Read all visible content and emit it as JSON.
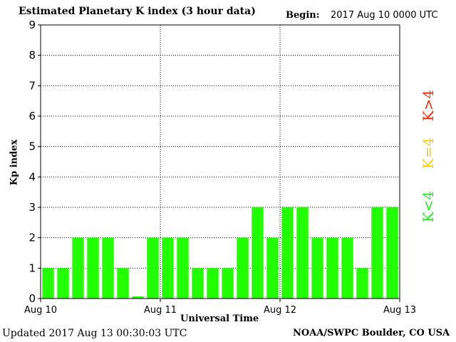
{
  "header": {
    "title": "Estimated Planetary K index (3 hour data)",
    "begin_label": "Begin:",
    "begin_value": "2017 Aug 10 0000 UTC"
  },
  "footer": {
    "updated": "Updated 2017 Aug 13 00:30:03 UTC",
    "credit": "NOAA/SWPC Boulder, CO USA"
  },
  "legend": [
    {
      "label": "K>4",
      "color": "#ff2a00"
    },
    {
      "label": "K=4",
      "color": "#ffcc00"
    },
    {
      "label": "K<4",
      "color": "#22ee22"
    }
  ],
  "chart_data": {
    "type": "bar",
    "title": "Estimated Planetary K index (3 hour data)",
    "xlabel": "Universal Time",
    "ylabel": "Kp index",
    "ylim": [
      0,
      9
    ],
    "yticks": [
      0,
      1,
      2,
      3,
      4,
      5,
      6,
      7,
      8,
      9
    ],
    "xtick_labels": [
      "Aug 10",
      "Aug 11",
      "Aug 12",
      "Aug 13"
    ],
    "bar_color": "#22ff00",
    "grid": true,
    "values": [
      1,
      1,
      2,
      2,
      2,
      1,
      0.07,
      2,
      2,
      2,
      1,
      1,
      1,
      2,
      3,
      2,
      3,
      3,
      2,
      2,
      2,
      1,
      3,
      3
    ]
  }
}
